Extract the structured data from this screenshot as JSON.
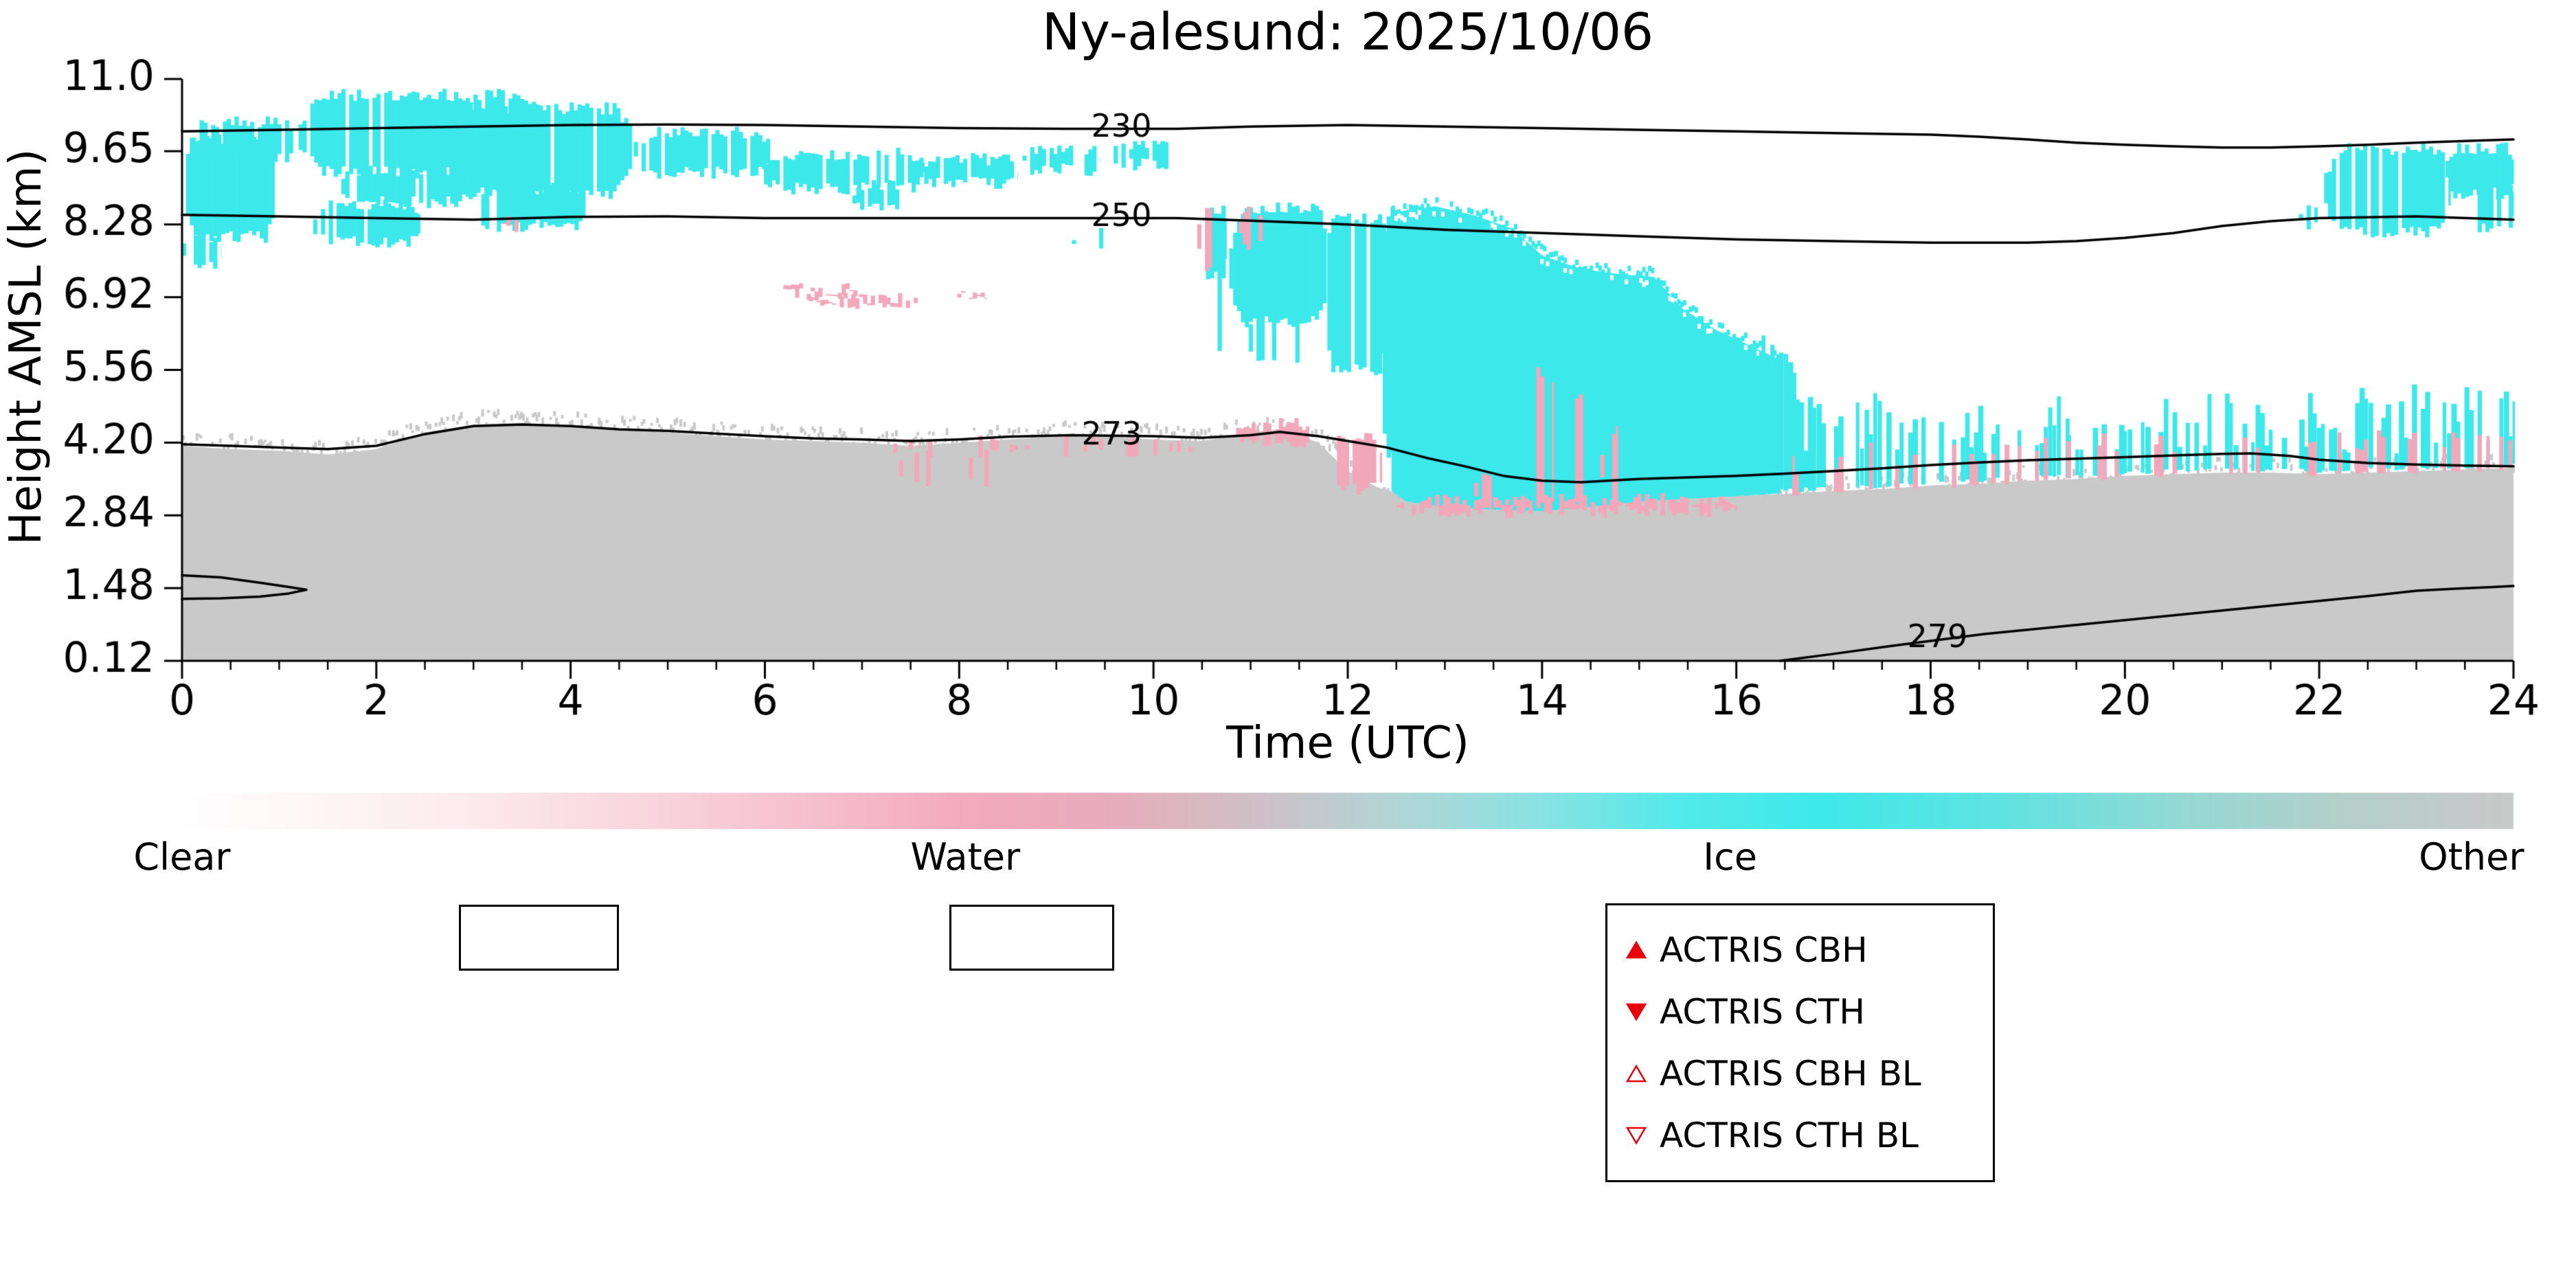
{
  "chart_data": {
    "type": "heatmap",
    "title": "Ny-alesund: 2025/10/06",
    "xlabel": "Time (UTC)",
    "ylabel": "Height AMSL (km)",
    "xlim": [
      0,
      24
    ],
    "ylim": [
      0.12,
      11.0
    ],
    "x_ticks": [
      0,
      2,
      4,
      6,
      8,
      10,
      12,
      14,
      16,
      18,
      20,
      22,
      24
    ],
    "x_tick_labels": [
      "0",
      "2",
      "4",
      "6",
      "8",
      "10",
      "12",
      "14",
      "16",
      "18",
      "20",
      "22",
      "24"
    ],
    "y_ticks": [
      0.12,
      1.48,
      2.84,
      4.2,
      5.56,
      6.92,
      8.28,
      9.65,
      11.0
    ],
    "y_tick_labels": [
      "0.12",
      "1.48",
      "2.84",
      "4.20",
      "5.56",
      "6.92",
      "8.28",
      "9.65",
      "11.0"
    ],
    "classes": {
      "clear": "#ffffff",
      "water": "#f3a7ba",
      "ice": "#3ce8ea",
      "other": "#c9c9c9"
    },
    "gray_top_boundary": [
      [
        0,
        4.14
      ],
      [
        0.5,
        4.08
      ],
      [
        1,
        4.05
      ],
      [
        1.5,
        3.98
      ],
      [
        2,
        4.08
      ],
      [
        2.5,
        4.39
      ],
      [
        3,
        4.54
      ],
      [
        3.5,
        4.57
      ],
      [
        4,
        4.51
      ],
      [
        4.5,
        4.45
      ],
      [
        5,
        4.39
      ],
      [
        5.5,
        4.32
      ],
      [
        6,
        4.26
      ],
      [
        6.5,
        4.23
      ],
      [
        7,
        4.2
      ],
      [
        7.5,
        4.14
      ],
      [
        8,
        4.2
      ],
      [
        8.5,
        4.26
      ],
      [
        9,
        4.32
      ],
      [
        9.5,
        4.32
      ],
      [
        10,
        4.26
      ],
      [
        10.5,
        4.23
      ],
      [
        11,
        4.39
      ],
      [
        11.35,
        4.45
      ],
      [
        11.7,
        4.2
      ],
      [
        12,
        3.67
      ],
      [
        12.3,
        3.37
      ],
      [
        12.6,
        3.21
      ],
      [
        13,
        3.15
      ],
      [
        13.5,
        3.09
      ],
      [
        14,
        3.03
      ],
      [
        14.5,
        3.09
      ],
      [
        15,
        3.12
      ],
      [
        15.5,
        3.15
      ],
      [
        16,
        3.21
      ],
      [
        16.5,
        3.24
      ],
      [
        17,
        3.3
      ],
      [
        17.5,
        3.33
      ],
      [
        18,
        3.4
      ],
      [
        18.5,
        3.43
      ],
      [
        19,
        3.49
      ],
      [
        19.5,
        3.52
      ],
      [
        20,
        3.58
      ],
      [
        20.5,
        3.61
      ],
      [
        21,
        3.64
      ],
      [
        21.5,
        3.64
      ],
      [
        22,
        3.61
      ],
      [
        22.5,
        3.64
      ],
      [
        23,
        3.67
      ],
      [
        23.5,
        3.7
      ],
      [
        24,
        3.73
      ]
    ],
    "ice_patches": [
      [
        0,
        0.95,
        8.05,
        9.9,
        0.98
      ],
      [
        0.1,
        1.15,
        9.5,
        10.2,
        0.9
      ],
      [
        1.2,
        3.75,
        9.25,
        10.7,
        0.92
      ],
      [
        1.35,
        2.45,
        7.95,
        8.65,
        0.93
      ],
      [
        1.6,
        2.95,
        8.7,
        9.3,
        0.9
      ],
      [
        2.55,
        4.65,
        8.85,
        10.45,
        0.95
      ],
      [
        3.0,
        4.15,
        8.25,
        8.95,
        0.9
      ],
      [
        4.65,
        6.05,
        9.25,
        10.0,
        0.85
      ],
      [
        5.95,
        7.65,
        8.95,
        9.6,
        0.88
      ],
      [
        6.9,
        7.4,
        8.6,
        9.0,
        0.8
      ],
      [
        7.6,
        8.6,
        9.05,
        9.5,
        0.85
      ],
      [
        8.65,
        9.45,
        9.3,
        9.7,
        0.8
      ],
      [
        9.55,
        10.3,
        9.4,
        9.78,
        0.55
      ],
      [
        9.0,
        9.6,
        7.88,
        8.1,
        0.3
      ],
      [
        0,
        0.4,
        7.55,
        8.05,
        0.5
      ],
      [
        10.5,
        10.75,
        7.3,
        8.55,
        0.95
      ],
      [
        10.5,
        10.85,
        5.9,
        7.3,
        0.35
      ],
      [
        10.78,
        11.78,
        6.45,
        8.58,
        0.96
      ],
      [
        10.9,
        11.6,
        5.8,
        6.5,
        0.4
      ],
      [
        11.75,
        12.4,
        5.55,
        8.4,
        0.96
      ],
      [
        12.32,
        12.85,
        3.9,
        8.5,
        0.96
      ],
      [
        22.05,
        23.35,
        8.15,
        9.7,
        0.85
      ],
      [
        23.3,
        24,
        8.85,
        9.7,
        0.85
      ],
      [
        23.55,
        24,
        8.25,
        9.0,
        0.8
      ],
      [
        21.75,
        21.98,
        8.3,
        8.58,
        0.7
      ]
    ],
    "ice_polygons": [
      {
        "points": [
          [
            12.45,
            8.5
          ],
          [
            12.9,
            8.62
          ],
          [
            13.3,
            8.45
          ],
          [
            13.7,
            8.2
          ],
          [
            14.0,
            7.7
          ],
          [
            14.4,
            7.45
          ],
          [
            14.8,
            7.35
          ],
          [
            15.15,
            7.3
          ],
          [
            15.45,
            6.7
          ],
          [
            15.8,
            6.3
          ],
          [
            16.1,
            6.05
          ],
          [
            16.45,
            5.75
          ],
          [
            16.45,
            3.25
          ],
          [
            16.0,
            3.2
          ],
          [
            15.5,
            3.15
          ],
          [
            15.0,
            3.1
          ],
          [
            14.5,
            3.0
          ],
          [
            14.0,
            2.92
          ],
          [
            13.5,
            2.95
          ],
          [
            13.0,
            3.0
          ],
          [
            12.6,
            3.1
          ],
          [
            12.45,
            3.3
          ]
        ]
      }
    ],
    "water_patches": [
      [
        6.15,
        6.95,
        6.97,
        7.07,
        0.85
      ],
      [
        6.45,
        7.62,
        6.82,
        6.92,
        0.85
      ],
      [
        7.98,
        8.28,
        6.9,
        7.0,
        0.7
      ],
      [
        3.3,
        3.55,
        8.25,
        8.4,
        0.5
      ],
      [
        10.45,
        10.6,
        7.4,
        8.6,
        0.9
      ],
      [
        10.88,
        11.12,
        7.9,
        8.52,
        0.6
      ],
      [
        10.85,
        11.6,
        4.18,
        4.55,
        0.88
      ],
      [
        11.85,
        12.35,
        3.35,
        4.3,
        0.75
      ],
      [
        12.5,
        16.0,
        2.9,
        3.14,
        0.85
      ],
      [
        13.9,
        14.12,
        3.1,
        5.5,
        0.8
      ],
      [
        14.3,
        14.48,
        3.05,
        5.0,
        0.75
      ],
      [
        14.6,
        14.78,
        3.05,
        4.4,
        0.7
      ],
      [
        13.3,
        13.48,
        3.0,
        3.6,
        0.7
      ],
      [
        7.3,
        8.4,
        3.45,
        3.95,
        0.15
      ],
      [
        7.2,
        10.4,
        4.05,
        4.22,
        0.25
      ]
    ],
    "streak_bands": [
      [
        15.9,
        16.6,
        4.8,
        6.3,
        0.75,
        0.15
      ],
      [
        16.6,
        19.4,
        4.0,
        5.3,
        0.62,
        0.3
      ],
      [
        19.4,
        20.4,
        3.9,
        4.6,
        0.45,
        0.3
      ],
      [
        20.4,
        22.1,
        4.0,
        5.2,
        0.6,
        0.3
      ],
      [
        22.1,
        24.0,
        4.0,
        5.3,
        0.7,
        0.35
      ]
    ],
    "contours": [
      {
        "label": "230",
        "label_at": [
          9.67,
          10.07
        ],
        "gap": [
          9.11,
          10.24
        ],
        "points": [
          [
            0,
            10.02
          ],
          [
            1,
            10.05
          ],
          [
            2,
            10.08
          ],
          [
            3,
            10.11
          ],
          [
            4,
            10.14
          ],
          [
            5,
            10.15
          ],
          [
            6,
            10.14
          ],
          [
            7,
            10.11
          ],
          [
            8,
            10.08
          ],
          [
            9.1,
            10.07
          ],
          [
            10.25,
            10.07
          ],
          [
            11,
            10.11
          ],
          [
            12,
            10.14
          ],
          [
            13,
            10.11
          ],
          [
            14,
            10.08
          ],
          [
            15,
            10.05
          ],
          [
            16,
            10.02
          ],
          [
            17,
            9.99
          ],
          [
            18,
            9.96
          ],
          [
            18.5,
            9.92
          ],
          [
            19,
            9.87
          ],
          [
            19.5,
            9.81
          ],
          [
            20,
            9.77
          ],
          [
            20.5,
            9.74
          ],
          [
            21,
            9.72
          ],
          [
            21.5,
            9.72
          ],
          [
            22,
            9.74
          ],
          [
            22.5,
            9.77
          ],
          [
            23,
            9.81
          ],
          [
            23.5,
            9.84
          ],
          [
            24,
            9.87
          ]
        ]
      },
      {
        "label": "250",
        "label_at": [
          9.67,
          8.41
        ],
        "gap": [
          9.11,
          10.24
        ],
        "points": [
          [
            0,
            8.46
          ],
          [
            1,
            8.43
          ],
          [
            2,
            8.4
          ],
          [
            3,
            8.37
          ],
          [
            4,
            8.42
          ],
          [
            5,
            8.43
          ],
          [
            6,
            8.4
          ],
          [
            7,
            8.4
          ],
          [
            8,
            8.4
          ],
          [
            9.1,
            8.4
          ],
          [
            10.25,
            8.4
          ],
          [
            11,
            8.35
          ],
          [
            12,
            8.28
          ],
          [
            13,
            8.18
          ],
          [
            14,
            8.12
          ],
          [
            15,
            8.06
          ],
          [
            16,
            8.0
          ],
          [
            17,
            7.97
          ],
          [
            18,
            7.94
          ],
          [
            19,
            7.94
          ],
          [
            19.5,
            7.97
          ],
          [
            20,
            8.03
          ],
          [
            20.5,
            8.12
          ],
          [
            21,
            8.25
          ],
          [
            21.5,
            8.34
          ],
          [
            22,
            8.4
          ],
          [
            23,
            8.43
          ],
          [
            24,
            8.37
          ]
        ]
      },
      {
        "label": "273",
        "label_at": [
          9.57,
          4.32
        ],
        "gap": [
          9.16,
          9.99
        ],
        "points": [
          [
            0,
            4.17
          ],
          [
            0.5,
            4.14
          ],
          [
            1,
            4.11
          ],
          [
            1.5,
            4.08
          ],
          [
            2,
            4.14
          ],
          [
            2.5,
            4.36
          ],
          [
            3,
            4.51
          ],
          [
            3.5,
            4.54
          ],
          [
            4,
            4.51
          ],
          [
            4.5,
            4.45
          ],
          [
            5,
            4.42
          ],
          [
            5.5,
            4.37
          ],
          [
            6,
            4.32
          ],
          [
            6.5,
            4.28
          ],
          [
            7,
            4.26
          ],
          [
            7.5,
            4.23
          ],
          [
            8,
            4.26
          ],
          [
            8.5,
            4.31
          ],
          [
            9.15,
            4.34
          ],
          [
            10,
            4.32
          ],
          [
            10.5,
            4.29
          ],
          [
            11,
            4.34
          ],
          [
            11.3,
            4.4
          ],
          [
            11.7,
            4.32
          ],
          [
            12,
            4.23
          ],
          [
            12.4,
            4.11
          ],
          [
            12.8,
            3.92
          ],
          [
            13.2,
            3.76
          ],
          [
            13.6,
            3.58
          ],
          [
            14,
            3.49
          ],
          [
            14.4,
            3.46
          ],
          [
            15,
            3.52
          ],
          [
            15.5,
            3.55
          ],
          [
            16,
            3.58
          ],
          [
            16.5,
            3.62
          ],
          [
            17,
            3.67
          ],
          [
            17.5,
            3.72
          ],
          [
            18,
            3.78
          ],
          [
            18.5,
            3.83
          ],
          [
            19,
            3.87
          ],
          [
            19.5,
            3.9
          ],
          [
            20,
            3.93
          ],
          [
            20.5,
            3.96
          ],
          [
            21,
            3.99
          ],
          [
            21.3,
            4.0
          ],
          [
            21.7,
            3.95
          ],
          [
            22,
            3.88
          ],
          [
            22.5,
            3.82
          ],
          [
            23,
            3.79
          ],
          [
            23.5,
            3.77
          ],
          [
            24,
            3.76
          ]
        ]
      },
      {
        "label": "279",
        "label_at": [
          18.07,
          0.53
        ],
        "gap": [
          17.61,
          18.54
        ],
        "points": [
          [
            16.45,
            0.12
          ],
          [
            17,
            0.25
          ],
          [
            17.6,
            0.4
          ],
          [
            18.55,
            0.62
          ],
          [
            19,
            0.7
          ],
          [
            19.5,
            0.79
          ],
          [
            20,
            0.88
          ],
          [
            20.5,
            0.97
          ],
          [
            21,
            1.06
          ],
          [
            21.5,
            1.15
          ],
          [
            22,
            1.24
          ],
          [
            22.5,
            1.33
          ],
          [
            23,
            1.43
          ],
          [
            23.4,
            1.47
          ],
          [
            23.8,
            1.5
          ],
          [
            24,
            1.52
          ]
        ]
      },
      {
        "label": "",
        "points": [
          [
            0,
            1.72
          ],
          [
            0.4,
            1.68
          ],
          [
            0.8,
            1.58
          ],
          [
            1.1,
            1.5
          ],
          [
            1.28,
            1.45
          ],
          [
            1.1,
            1.38
          ],
          [
            0.8,
            1.32
          ],
          [
            0.4,
            1.29
          ],
          [
            0,
            1.28
          ]
        ]
      }
    ],
    "colorbar": {
      "stops": [
        [
          0,
          "#ffffff"
        ],
        [
          0.05,
          "#fef7f8"
        ],
        [
          0.12,
          "#fcebef"
        ],
        [
          0.2,
          "#f9d5de"
        ],
        [
          0.28,
          "#f6bccb"
        ],
        [
          0.336,
          "#f3aabc"
        ],
        [
          0.4,
          "#e7adbc"
        ],
        [
          0.46,
          "#cfc0c6"
        ],
        [
          0.52,
          "#b2d5d5"
        ],
        [
          0.58,
          "#8ce2e3"
        ],
        [
          0.64,
          "#55e9ea"
        ],
        [
          0.7,
          "#3fe9ea"
        ],
        [
          0.78,
          "#5fe3e2"
        ],
        [
          0.86,
          "#96d8d3"
        ],
        [
          0.93,
          "#b6cfca"
        ],
        [
          1,
          "#c9c9c9"
        ]
      ],
      "labels": [
        {
          "text": "Clear",
          "pos": 0.0
        },
        {
          "text": "Water",
          "pos": 0.336
        },
        {
          "text": "Ice",
          "pos": 0.664
        },
        {
          "text": "Other",
          "pos": 0.982
        }
      ]
    }
  },
  "legend": {
    "marker_color": "#e8000b",
    "items": [
      {
        "marker": "triangle-up-filled",
        "label": "ACTRIS CBH"
      },
      {
        "marker": "triangle-down-filled",
        "label": "ACTRIS CTH"
      },
      {
        "marker": "triangle-up-open",
        "label": "ACTRIS CBH BL"
      },
      {
        "marker": "triangle-down-open",
        "label": "ACTRIS CTH BL"
      }
    ]
  }
}
